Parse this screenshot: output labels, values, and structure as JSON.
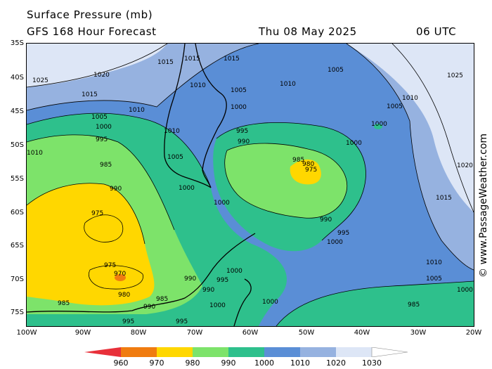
{
  "header": {
    "title_line1": "Surface Pressure (mb)",
    "title_line2": "GFS 168 Hour Forecast",
    "date": "Thu 08 May 2025",
    "time": "06 UTC"
  },
  "axes": {
    "latitude_labels": [
      "35S",
      "40S",
      "45S",
      "50S",
      "55S",
      "60S",
      "65S",
      "70S",
      "75S"
    ],
    "longitude_labels": [
      "100W",
      "90W",
      "80W",
      "70W",
      "60W",
      "50W",
      "40W",
      "30W",
      "20W"
    ]
  },
  "legend": {
    "colors": [
      "#e8303a",
      "#f07c10",
      "#ffd700",
      "#7de36a",
      "#2ec08c",
      "#5a8ed6",
      "#96b2e0",
      "#dde6f6",
      "#ffffff"
    ],
    "labels": [
      "960",
      "970",
      "980",
      "990",
      "1000",
      "1010",
      "1020",
      "1030"
    ]
  },
  "isobar_labels": [
    "1025",
    "1020",
    "1015",
    "1010",
    "1005",
    "1000",
    "995",
    "990",
    "985",
    "980",
    "975",
    "970"
  ],
  "watermark": "© www.PassageWeather.com"
}
